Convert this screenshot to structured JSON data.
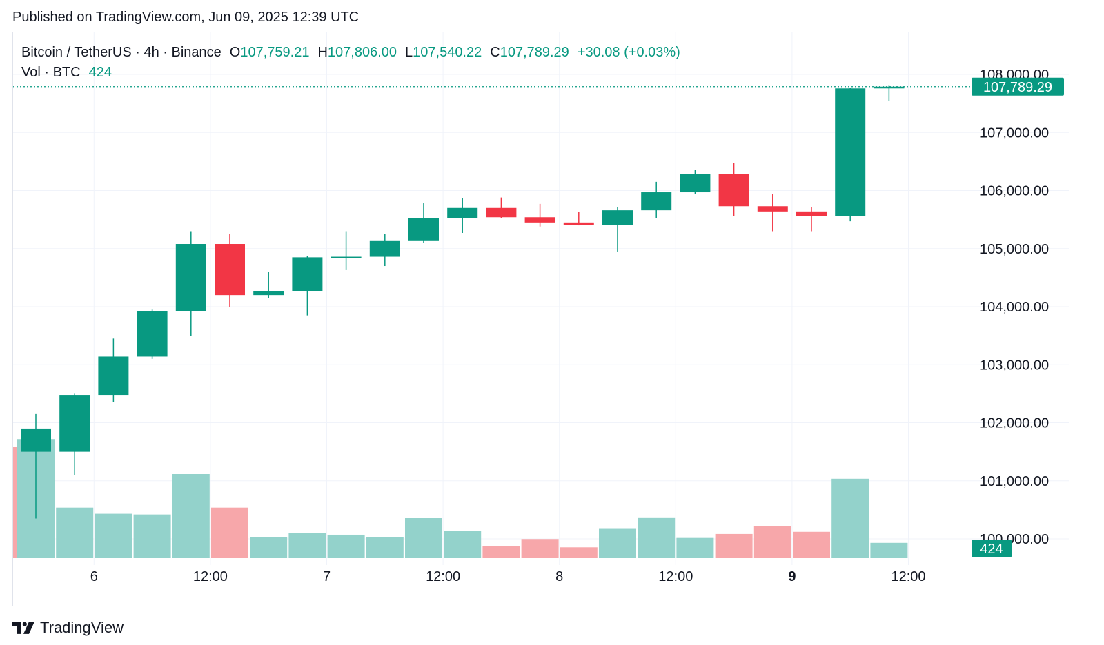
{
  "header": {
    "published": "Published on TradingView.com, Jun 09, 2025 12:39 UTC"
  },
  "legend": {
    "symbol": "Bitcoin / TetherUS · 4h · Binance",
    "open_label": "O",
    "open": "107,759.21",
    "high_label": "H",
    "high": "107,806.00",
    "low_label": "L",
    "low": "107,540.22",
    "close_label": "C",
    "close": "107,789.29",
    "change": "+30.08 (+0.03%)",
    "vol_label": "Vol · BTC",
    "vol_value": "424"
  },
  "footer": {
    "brand": "TradingView"
  },
  "colors": {
    "up": "#089981",
    "down": "#f23645",
    "vol_up": "#93d2cb",
    "vol_down": "#f7a7aa",
    "grid": "#f0f3fa",
    "text": "#131722"
  },
  "chart_data": {
    "type": "candlestick",
    "symbol": "Bitcoin / TetherUS",
    "interval": "4h",
    "exchange": "Binance",
    "x_tick_labels": [
      "6",
      "12:00",
      "7",
      "12:00",
      "8",
      "12:00",
      "9",
      "12:00"
    ],
    "x_tick_bold": [
      false,
      false,
      false,
      false,
      false,
      false,
      true,
      false
    ],
    "x_tick_candle_index": [
      1.5,
      4.5,
      7.5,
      10.5,
      13.5,
      16.5,
      19.5,
      22.5
    ],
    "y_ticks": [
      100000,
      101000,
      102000,
      103000,
      104000,
      105000,
      106000,
      107000,
      108000
    ],
    "y_tick_labels": [
      "100,000.00",
      "101,000.00",
      "102,000.00",
      "103,000.00",
      "104,000.00",
      "105,000.00",
      "106,000.00",
      "107,000.00",
      "108,000.00"
    ],
    "last_price": 107789.29,
    "last_price_label": "107,789.29",
    "last_volume": 424,
    "last_volume_label": "424",
    "volume_max": 3700,
    "candles": [
      {
        "o": 101500,
        "h": 102150,
        "l": 100350,
        "c": 101900,
        "v": 3300
      },
      {
        "o": 101500,
        "h": 102500,
        "l": 101100,
        "c": 102480,
        "v": 1400
      },
      {
        "o": 102480,
        "h": 103450,
        "l": 102350,
        "c": 103140,
        "v": 1230
      },
      {
        "o": 103140,
        "h": 103950,
        "l": 103100,
        "c": 103920,
        "v": 1210
      },
      {
        "o": 103920,
        "h": 105300,
        "l": 103500,
        "c": 105080,
        "v": 2330
      },
      {
        "o": 105080,
        "h": 105250,
        "l": 104000,
        "c": 104200,
        "v": 1400
      },
      {
        "o": 104200,
        "h": 104600,
        "l": 104150,
        "c": 104270,
        "v": 580
      },
      {
        "o": 104270,
        "h": 104870,
        "l": 103850,
        "c": 104850,
        "v": 690
      },
      {
        "o": 104850,
        "h": 105300,
        "l": 104630,
        "c": 104860,
        "v": 650
      },
      {
        "o": 104860,
        "h": 105250,
        "l": 104700,
        "c": 105130,
        "v": 580
      },
      {
        "o": 105130,
        "h": 105780,
        "l": 105100,
        "c": 105530,
        "v": 1120
      },
      {
        "o": 105530,
        "h": 105870,
        "l": 105270,
        "c": 105700,
        "v": 760
      },
      {
        "o": 105700,
        "h": 105880,
        "l": 105520,
        "c": 105540,
        "v": 340
      },
      {
        "o": 105540,
        "h": 105770,
        "l": 105380,
        "c": 105450,
        "v": 530
      },
      {
        "o": 105450,
        "h": 105630,
        "l": 105400,
        "c": 105410,
        "v": 300
      },
      {
        "o": 105410,
        "h": 105720,
        "l": 104950,
        "c": 105660,
        "v": 830
      },
      {
        "o": 105660,
        "h": 106150,
        "l": 105520,
        "c": 105970,
        "v": 1130
      },
      {
        "o": 105970,
        "h": 106350,
        "l": 105940,
        "c": 106280,
        "v": 560
      },
      {
        "o": 106280,
        "h": 106470,
        "l": 105560,
        "c": 105730,
        "v": 670
      },
      {
        "o": 105730,
        "h": 105940,
        "l": 105300,
        "c": 105640,
        "v": 880
      },
      {
        "o": 105640,
        "h": 105720,
        "l": 105300,
        "c": 105560,
        "v": 730
      },
      {
        "o": 105560,
        "h": 107770,
        "l": 105470,
        "c": 107759.21,
        "v": 2200
      },
      {
        "o": 107759.21,
        "h": 107806,
        "l": 107540.22,
        "c": 107789.29,
        "v": 424
      }
    ]
  }
}
